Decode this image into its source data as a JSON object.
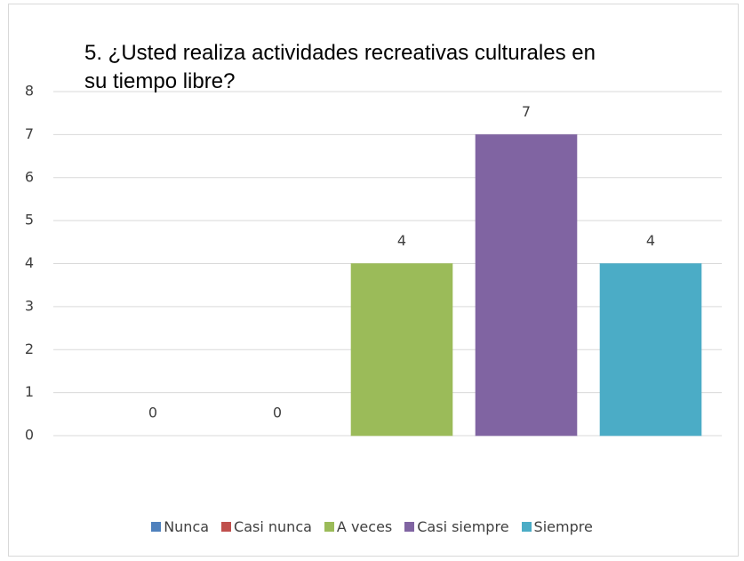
{
  "chart_data": {
    "type": "bar",
    "title": "5. ¿Usted realiza actividades recreativas culturales en su tiempo libre?",
    "categories": [
      "Nunca",
      "Casi nunca",
      "A veces",
      "Casi siempre",
      "Siempre"
    ],
    "values": [
      0,
      0,
      4,
      7,
      4
    ],
    "colors": [
      "#4f81bd",
      "#c0504d",
      "#9bbb59",
      "#8064a2",
      "#4bacc6"
    ],
    "ylim": [
      0,
      8
    ],
    "yticks": [
      0,
      1,
      2,
      3,
      4,
      5,
      6,
      7,
      8
    ],
    "grid": true,
    "legend": "bottom"
  }
}
